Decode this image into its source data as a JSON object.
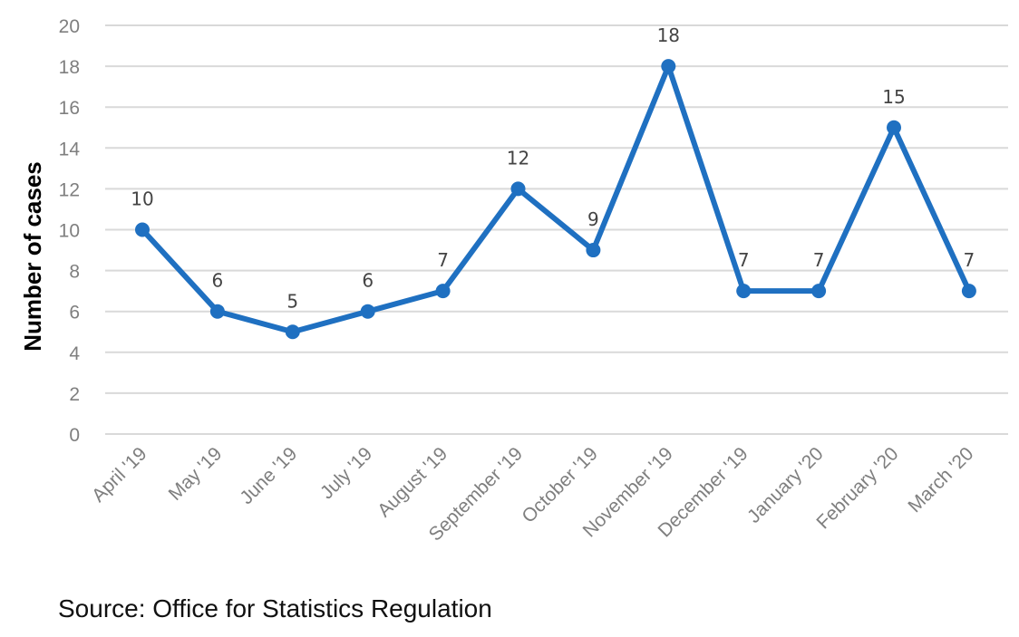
{
  "chart_data": {
    "type": "line",
    "categories": [
      "April '19",
      "May '19",
      "June '19",
      "July '19",
      "August '19",
      "September '19",
      "October '19",
      "November '19",
      "December '19",
      "January '20",
      "February '20",
      "March '20"
    ],
    "values": [
      10,
      6,
      5,
      6,
      7,
      12,
      9,
      18,
      7,
      7,
      15,
      7
    ],
    "data_labels": [
      "10",
      "6",
      "5",
      "6",
      "7",
      "12",
      "9",
      "18",
      "7",
      "7",
      "15",
      "7"
    ],
    "ylabel": "Number of cases",
    "xlabel": "",
    "ylim": [
      0,
      20
    ],
    "yticks": [
      "0",
      "2",
      "4",
      "6",
      "8",
      "10",
      "12",
      "14",
      "16",
      "18",
      "20"
    ],
    "grid": true,
    "line_color": "#1f70c1",
    "grid_color": "#d9d9d9"
  },
  "source": "Source: Office for Statistics Regulation"
}
